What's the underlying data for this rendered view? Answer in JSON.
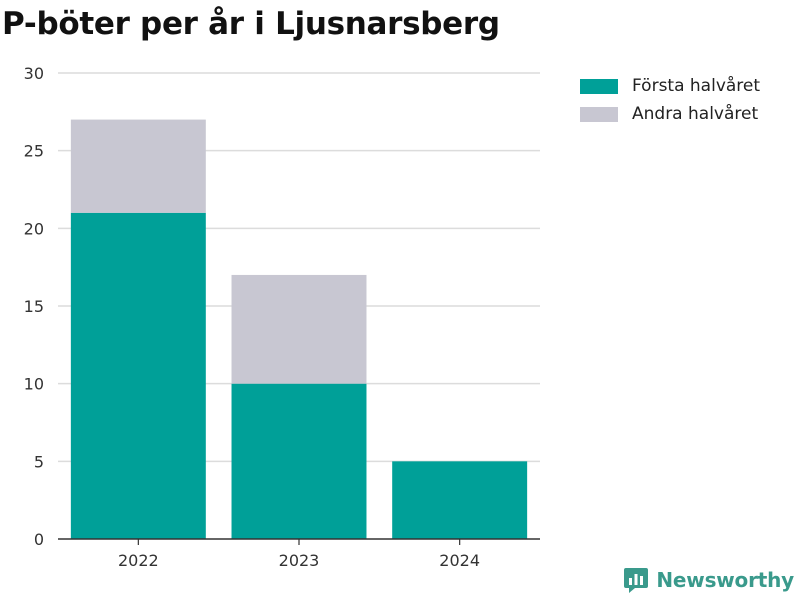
{
  "chart_data": {
    "type": "bar",
    "stacked": true,
    "title": "P-böter per år i Ljusnarsberg",
    "categories": [
      "2022",
      "2023",
      "2024"
    ],
    "series": [
      {
        "name": "Första halvåret",
        "values": [
          21,
          10,
          5
        ],
        "color": "#00a098"
      },
      {
        "name": "Andra halvåret",
        "values": [
          6,
          7,
          0
        ],
        "color": "#c8c7d2"
      }
    ],
    "xlabel": "",
    "ylabel": "",
    "ylim": [
      0,
      30
    ],
    "yticks": [
      "0",
      "5",
      "10",
      "15",
      "20",
      "25",
      "30"
    ],
    "grid": true,
    "legend_position": "top-right"
  },
  "brand": {
    "name": "Newsworthy",
    "icon": "newsworthy-logo-icon",
    "color": "#3a9a8c"
  }
}
